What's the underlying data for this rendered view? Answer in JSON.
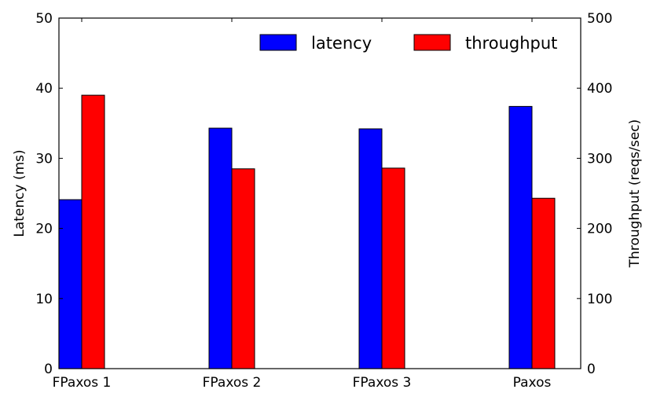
{
  "chart_data": {
    "type": "bar",
    "categories": [
      "FPaxos 1",
      "FPaxos 2",
      "FPaxos 3",
      "Paxos"
    ],
    "series": [
      {
        "name": "latency",
        "axis": "left",
        "color": "#0000ff",
        "values": [
          24.1,
          34.3,
          34.2,
          37.4
        ]
      },
      {
        "name": "throughput",
        "axis": "right",
        "color": "#ff0000",
        "values": [
          390,
          285,
          286,
          243
        ]
      }
    ],
    "ylabel": "Latency (ms)",
    "y2label": "Throughput (reqs/sec)",
    "ylim": [
      0,
      50
    ],
    "y2lim": [
      0,
      500
    ],
    "yticks": [
      "0",
      "10",
      "20",
      "30",
      "40",
      "50"
    ],
    "y2ticks": [
      "0",
      "100",
      "200",
      "300",
      "400",
      "500"
    ],
    "grid": false,
    "legend_position": "top-right"
  }
}
